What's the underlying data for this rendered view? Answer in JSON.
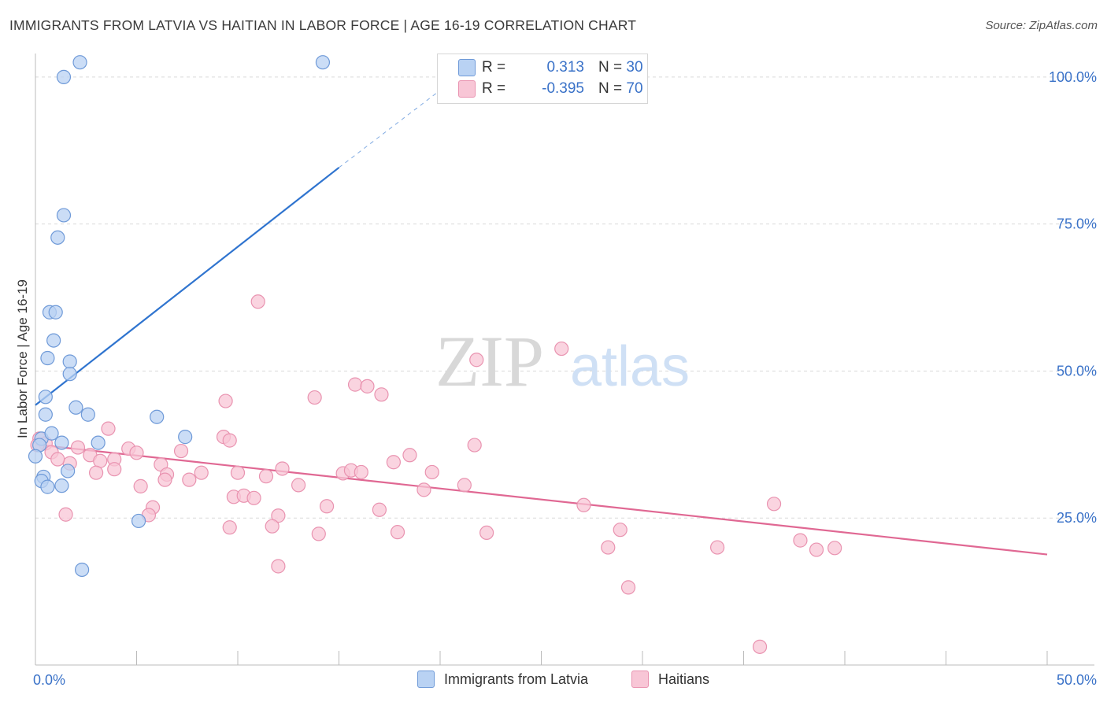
{
  "title": "IMMIGRANTS FROM LATVIA VS HAITIAN IN LABOR FORCE | AGE 16-19 CORRELATION CHART",
  "source": "Source: ZipAtlas.com",
  "watermark": {
    "zip": "ZIP",
    "atlas": "atlas"
  },
  "colors": {
    "blue_fill": "#b9d2f3",
    "blue_stroke": "#6f9ad8",
    "blue_line": "#2f74cf",
    "pink_fill": "#f8c6d6",
    "pink_stroke": "#e993b0",
    "pink_line": "#e06893",
    "axis_text": "#3a72c8",
    "grid": "#d9d9d9"
  },
  "legend_top": {
    "rows": [
      {
        "r_label": "R =",
        "r_value": "0.313",
        "n_label": "N =",
        "n_value": "30"
      },
      {
        "r_label": "R =",
        "r_value": "-0.395",
        "n_label": "N =",
        "n_value": "70"
      }
    ]
  },
  "legend_bottom": {
    "items": [
      "Immigrants from Latvia",
      "Haitians"
    ]
  },
  "chart_data": {
    "type": "scatter",
    "ylabel": "In Labor Force | Age 16-19",
    "xlim": [
      0,
      50
    ],
    "ylim": [
      0,
      104
    ],
    "x_tick_labels": [
      "0.0%",
      "50.0%"
    ],
    "y_tick_labels": [
      "100.0%",
      "75.0%",
      "50.0%",
      "25.0%"
    ],
    "y_ticks": [
      100,
      75,
      50,
      25
    ],
    "grid": true,
    "legend": "bottom",
    "series": [
      {
        "name": "Immigrants from Latvia",
        "points": [
          [
            2.2,
            102.5
          ],
          [
            14.2,
            102.5
          ],
          [
            1.4,
            100.0
          ],
          [
            1.4,
            76.5
          ],
          [
            1.1,
            72.7
          ],
          [
            0.7,
            60.0
          ],
          [
            1.0,
            60.0
          ],
          [
            0.9,
            55.2
          ],
          [
            0.6,
            52.2
          ],
          [
            1.7,
            51.6
          ],
          [
            1.7,
            49.5
          ],
          [
            0.5,
            45.6
          ],
          [
            2.0,
            43.8
          ],
          [
            0.5,
            42.6
          ],
          [
            2.6,
            42.6
          ],
          [
            6.0,
            42.2
          ],
          [
            7.4,
            38.8
          ],
          [
            0.3,
            38.5
          ],
          [
            0.8,
            39.4
          ],
          [
            1.3,
            37.8
          ],
          [
            3.1,
            37.8
          ],
          [
            0.2,
            37.4
          ],
          [
            0.0,
            35.5
          ],
          [
            1.6,
            33.0
          ],
          [
            0.4,
            32.0
          ],
          [
            0.3,
            31.3
          ],
          [
            0.6,
            30.3
          ],
          [
            1.3,
            30.5
          ],
          [
            5.1,
            24.5
          ],
          [
            2.3,
            16.2
          ]
        ],
        "trend": {
          "x": [
            0,
            15
          ],
          "y": [
            44.2,
            84.6
          ],
          "dashed_to": [
            22,
            103
          ]
        }
      },
      {
        "name": "Haitians",
        "points": [
          [
            11.0,
            61.8
          ],
          [
            26.0,
            53.8
          ],
          [
            21.8,
            51.9
          ],
          [
            15.8,
            47.7
          ],
          [
            16.4,
            47.4
          ],
          [
            17.1,
            46.0
          ],
          [
            13.8,
            45.5
          ],
          [
            9.4,
            44.9
          ],
          [
            3.6,
            40.2
          ],
          [
            9.3,
            38.8
          ],
          [
            0.2,
            38.5
          ],
          [
            0.5,
            37.7
          ],
          [
            0.8,
            36.2
          ],
          [
            2.1,
            37.0
          ],
          [
            4.6,
            36.8
          ],
          [
            5.0,
            36.1
          ],
          [
            7.2,
            36.4
          ],
          [
            9.6,
            38.2
          ],
          [
            0.1,
            37.4
          ],
          [
            1.7,
            34.3
          ],
          [
            2.7,
            35.7
          ],
          [
            3.2,
            34.7
          ],
          [
            3.9,
            35.0
          ],
          [
            6.2,
            34.1
          ],
          [
            1.1,
            35.0
          ],
          [
            21.7,
            37.4
          ],
          [
            18.5,
            35.7
          ],
          [
            17.7,
            34.5
          ],
          [
            12.2,
            33.4
          ],
          [
            6.5,
            32.4
          ],
          [
            3.0,
            32.7
          ],
          [
            3.9,
            33.3
          ],
          [
            8.2,
            32.7
          ],
          [
            7.6,
            31.5
          ],
          [
            10.0,
            32.7
          ],
          [
            11.4,
            32.1
          ],
          [
            15.2,
            32.6
          ],
          [
            15.6,
            33.1
          ],
          [
            16.1,
            32.8
          ],
          [
            19.6,
            32.8
          ],
          [
            5.2,
            30.4
          ],
          [
            6.4,
            31.5
          ],
          [
            13.0,
            30.6
          ],
          [
            21.2,
            30.6
          ],
          [
            19.2,
            29.8
          ],
          [
            9.8,
            28.6
          ],
          [
            10.3,
            28.8
          ],
          [
            10.8,
            28.4
          ],
          [
            14.4,
            27.0
          ],
          [
            17.0,
            26.4
          ],
          [
            5.8,
            26.8
          ],
          [
            1.5,
            25.6
          ],
          [
            5.6,
            25.5
          ],
          [
            12.0,
            25.4
          ],
          [
            11.7,
            23.6
          ],
          [
            9.6,
            23.4
          ],
          [
            14.0,
            22.3
          ],
          [
            17.9,
            22.6
          ],
          [
            22.3,
            22.5
          ],
          [
            27.1,
            27.2
          ],
          [
            28.9,
            23.0
          ],
          [
            28.3,
            20.0
          ],
          [
            36.5,
            27.4
          ],
          [
            33.7,
            20.0
          ],
          [
            37.8,
            21.2
          ],
          [
            38.6,
            19.6
          ],
          [
            39.5,
            19.9
          ],
          [
            12.0,
            16.8
          ],
          [
            29.3,
            13.2
          ],
          [
            35.8,
            3.1
          ]
        ],
        "trend": {
          "x": [
            0,
            50
          ],
          "y": [
            37.5,
            18.8
          ]
        }
      }
    ]
  }
}
